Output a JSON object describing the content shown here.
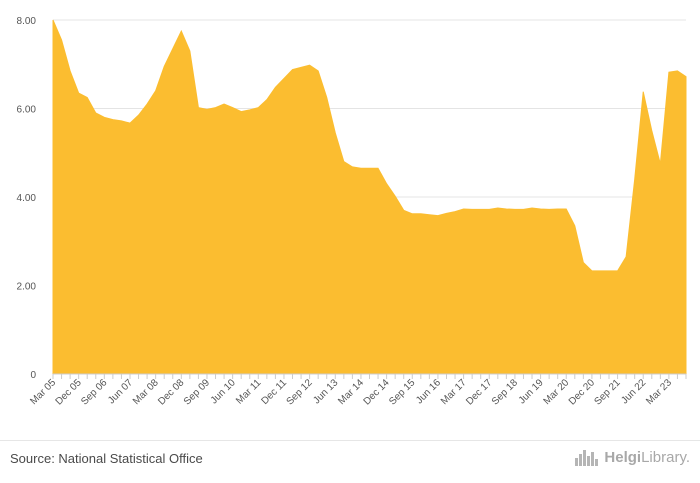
{
  "chart_data": {
    "type": "area",
    "ylim": [
      0,
      8
    ],
    "y_ticks": [
      {
        "value": 0,
        "label": "0"
      },
      {
        "value": 2,
        "label": "2.00"
      },
      {
        "value": 4,
        "label": "4.00"
      },
      {
        "value": 6,
        "label": "6.00"
      },
      {
        "value": 8,
        "label": "8.00"
      }
    ],
    "x_tick_labels": [
      "Mar 05",
      "Dec 05",
      "Sep 06",
      "Jun 07",
      "Mar 08",
      "Dec 08",
      "Sep 09",
      "Jun 10",
      "Mar 11",
      "Dec 11",
      "Sep 12",
      "Jun 13",
      "Mar 14",
      "Dec 14",
      "Sep 15",
      "Jun 16",
      "Mar 17",
      "Dec 17",
      "Sep 18",
      "Jun 19",
      "Mar 20",
      "Dec 20",
      "Sep 21",
      "Jun 22",
      "Mar 23"
    ],
    "grid": true,
    "legend": "none",
    "colors": {
      "area": "#fbbd30",
      "grid": "#e4e4e4",
      "axis": "#cccccc",
      "text": "#555555"
    },
    "series": [
      {
        "x": [
          "Mar 05",
          "Jun 05",
          "Sep 05",
          "Dec 05",
          "Mar 06",
          "Jun 06",
          "Sep 06",
          "Dec 06",
          "Mar 07",
          "Jun 07",
          "Sep 07",
          "Dec 07",
          "Mar 08",
          "Jun 08",
          "Sep 08",
          "Dec 08",
          "Mar 09",
          "Jun 09",
          "Sep 09",
          "Dec 09",
          "Mar 10",
          "Jun 10",
          "Sep 10",
          "Dec 10",
          "Mar 11",
          "Jun 11",
          "Sep 11",
          "Dec 11",
          "Mar 12",
          "Jun 12",
          "Sep 12",
          "Dec 12",
          "Mar 13",
          "Jun 13",
          "Sep 13",
          "Dec 13",
          "Mar 14",
          "Jun 14",
          "Sep 14",
          "Dec 14",
          "Mar 15",
          "Jun 15",
          "Sep 15",
          "Dec 15",
          "Mar 16",
          "Jun 16",
          "Sep 16",
          "Dec 16",
          "Mar 17",
          "Jun 17",
          "Sep 17",
          "Dec 17",
          "Mar 18",
          "Jun 18",
          "Sep 18",
          "Dec 18",
          "Mar 19",
          "Jun 19",
          "Sep 19",
          "Dec 19",
          "Mar 20",
          "Jun 20",
          "Sep 20",
          "Dec 20",
          "Mar 21",
          "Jun 21",
          "Sep 21",
          "Dec 21",
          "Mar 22",
          "Jun 22",
          "Sep 22",
          "Dec 22",
          "Mar 23",
          "Jun 23",
          "Sep 23"
        ],
        "values": [
          8.0,
          7.55,
          6.85,
          6.35,
          6.25,
          5.9,
          5.8,
          5.75,
          5.72,
          5.67,
          5.85,
          6.1,
          6.4,
          6.95,
          7.35,
          7.75,
          7.3,
          6.02,
          5.98,
          6.02,
          6.1,
          6.02,
          5.93,
          5.97,
          6.02,
          6.2,
          6.48,
          6.68,
          6.88,
          6.93,
          6.98,
          6.85,
          6.25,
          5.45,
          4.8,
          4.68,
          4.65,
          4.65,
          4.65,
          4.3,
          4.02,
          3.7,
          3.62,
          3.62,
          3.6,
          3.58,
          3.63,
          3.67,
          3.73,
          3.72,
          3.72,
          3.72,
          3.75,
          3.73,
          3.72,
          3.72,
          3.75,
          3.73,
          3.72,
          3.73,
          3.73,
          3.35,
          2.52,
          2.33,
          2.33,
          2.33,
          2.33,
          2.65,
          4.4,
          6.38,
          5.5,
          4.75,
          6.82,
          6.85,
          6.72
        ]
      }
    ]
  },
  "footer": {
    "source": "Source: National Statistical Office",
    "brand_strong": "Helgi",
    "brand_rest": "Library."
  }
}
